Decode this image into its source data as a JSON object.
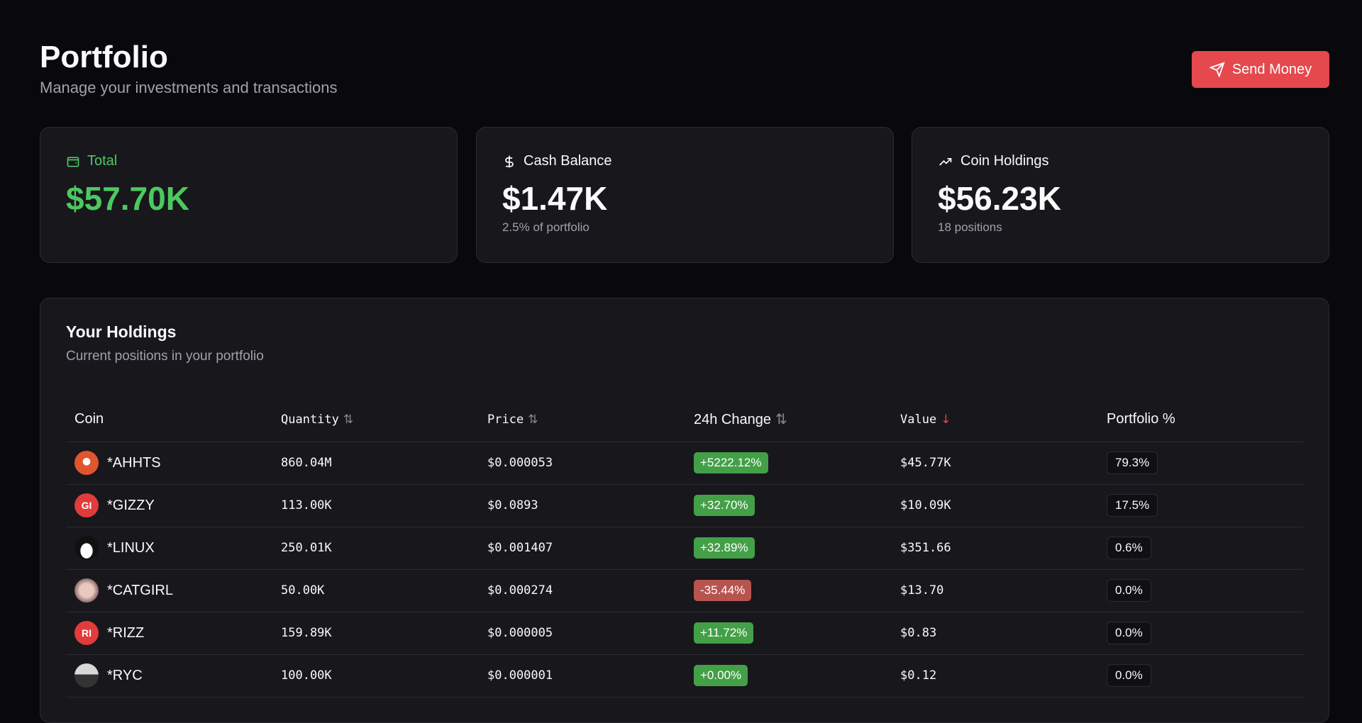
{
  "header": {
    "title": "Portfolio",
    "subtitle": "Manage your investments and transactions",
    "send_label": "Send Money"
  },
  "colors": {
    "accent": "#e5484d",
    "positive": "#4cc95e",
    "badge_up": "#43a047",
    "badge_down": "#b85450"
  },
  "stats": [
    {
      "label": "Total",
      "value": "$57.70K",
      "note": "",
      "icon": "wallet-icon"
    },
    {
      "label": "Cash Balance",
      "value": "$1.47K",
      "note": "2.5% of portfolio",
      "icon": "dollar-icon"
    },
    {
      "label": "Coin Holdings",
      "value": "$56.23K",
      "note": "18 positions",
      "icon": "trending-up-icon"
    }
  ],
  "holdings": {
    "title": "Your Holdings",
    "subtitle": "Current positions in your portfolio",
    "columns": [
      "Coin",
      "Quantity",
      "Price",
      "24h Change",
      "Value",
      "Portfolio %"
    ],
    "sort": {
      "column": "Value",
      "direction": "desc"
    },
    "rows": [
      {
        "symbol": "*AHHTS",
        "avatar": "",
        "quantity": "860.04M",
        "price": "$0.000053",
        "change": "+5222.12%",
        "up": true,
        "value": "$45.77K",
        "portfolio": "79.3%"
      },
      {
        "symbol": "*GIZZY",
        "avatar": "GI",
        "quantity": "113.00K",
        "price": "$0.0893",
        "change": "+32.70%",
        "up": true,
        "value": "$10.09K",
        "portfolio": "17.5%"
      },
      {
        "symbol": "*LINUX",
        "avatar": "",
        "quantity": "250.01K",
        "price": "$0.001407",
        "change": "+32.89%",
        "up": true,
        "value": "$351.66",
        "portfolio": "0.6%"
      },
      {
        "symbol": "*CATGIRL",
        "avatar": "",
        "quantity": "50.00K",
        "price": "$0.000274",
        "change": "-35.44%",
        "up": false,
        "value": "$13.70",
        "portfolio": "0.0%"
      },
      {
        "symbol": "*RIZZ",
        "avatar": "RI",
        "quantity": "159.89K",
        "price": "$0.000005",
        "change": "+11.72%",
        "up": true,
        "value": "$0.83",
        "portfolio": "0.0%"
      },
      {
        "symbol": "*RYC",
        "avatar": "",
        "quantity": "100.00K",
        "price": "$0.000001",
        "change": "+0.00%",
        "up": true,
        "value": "$0.12",
        "portfolio": "0.0%"
      }
    ]
  }
}
